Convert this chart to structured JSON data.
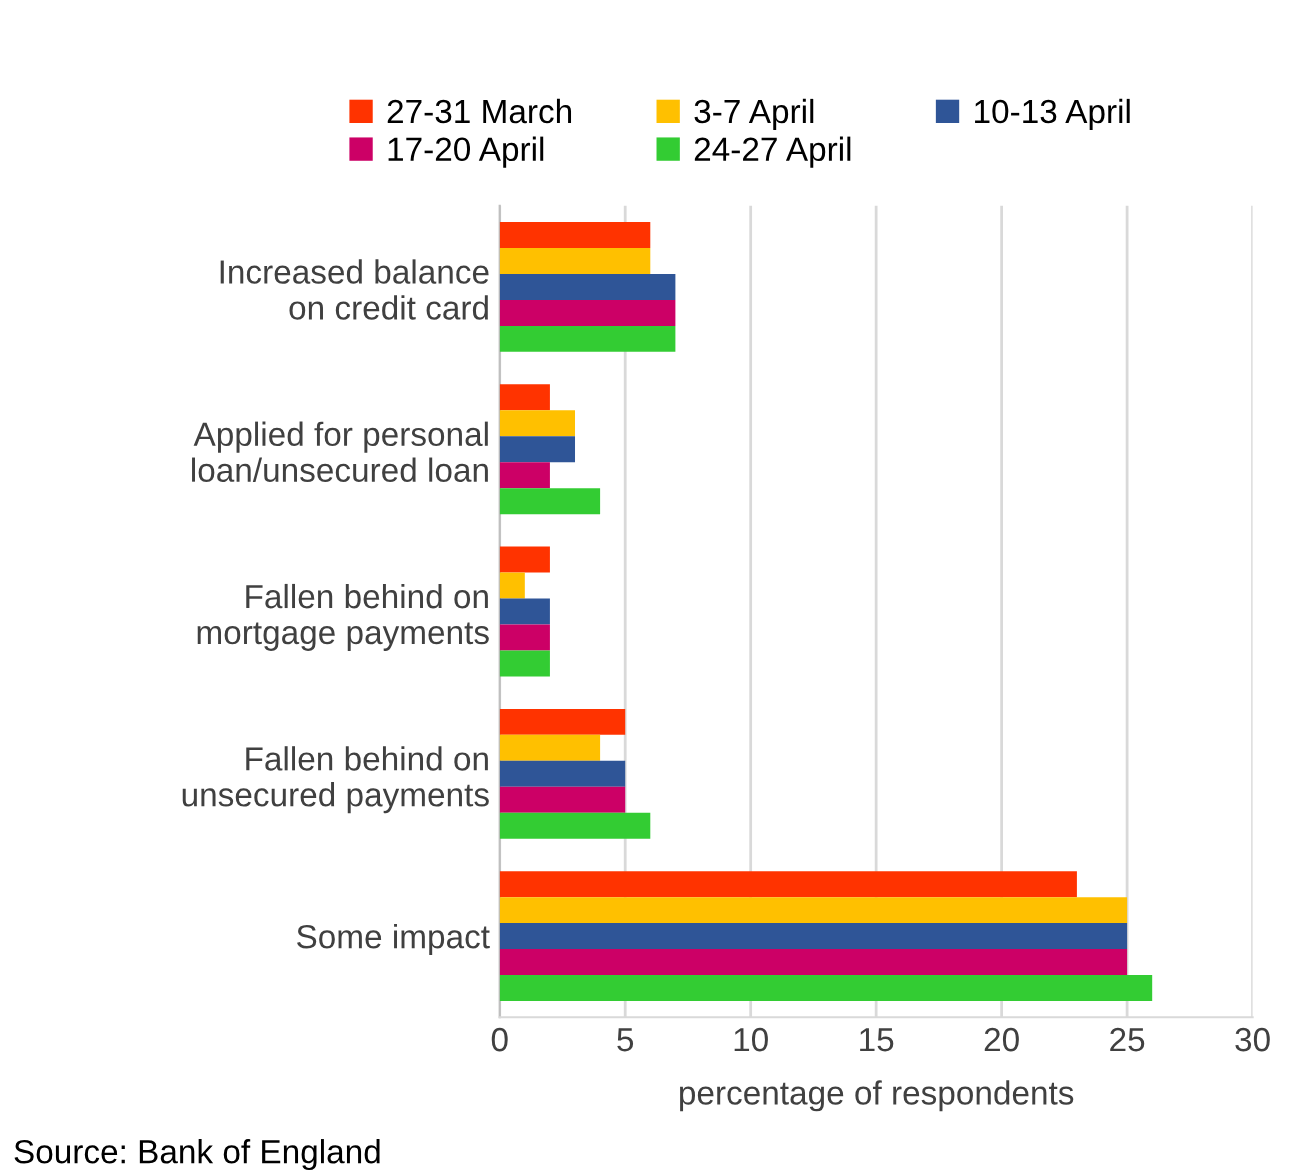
{
  "chart_data": {
    "type": "bar",
    "orientation": "horizontal",
    "categories": [
      "Increased balance\non credit card",
      "Applied for personal\nloan/unsecured loan",
      "Fallen behind on\nmortgage payments",
      "Fallen behind on\nunsecured payments",
      "Some impact"
    ],
    "series": [
      {
        "name": "27-31 March",
        "color": "#ff3300",
        "values": [
          6,
          2,
          2,
          5,
          23
        ]
      },
      {
        "name": "3-7 April",
        "color": "#ffc000",
        "values": [
          6,
          3,
          1,
          4,
          25
        ]
      },
      {
        "name": "10-13 April",
        "color": "#2f5597",
        "values": [
          7,
          3,
          2,
          5,
          25
        ]
      },
      {
        "name": "17-20 April",
        "color": "#cc0066",
        "values": [
          7,
          2,
          2,
          5,
          25
        ]
      },
      {
        "name": "24-27 April",
        "color": "#33cc33",
        "values": [
          7,
          4,
          2,
          6,
          26
        ]
      }
    ],
    "xlim": [
      0,
      30
    ],
    "xticks": [
      0,
      5,
      10,
      15,
      20,
      25,
      30
    ],
    "xlabel": "percentage of respondents",
    "annotations": [
      "Source: Bank of England"
    ],
    "grid": "x",
    "legend": "top"
  }
}
